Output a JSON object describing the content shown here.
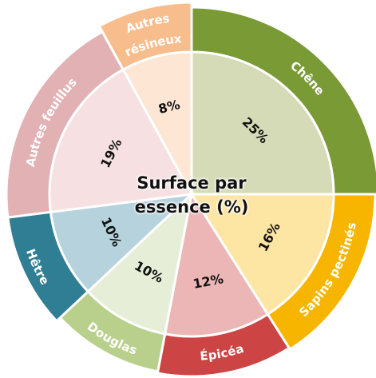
{
  "chart_data": {
    "type": "pie",
    "title": "Surface par essence (%)",
    "categories": [
      "Chêne",
      "Sapins pectinés",
      "Épicéa",
      "Douglas",
      "Hêtre",
      "Autres feuillus",
      "Autres résineux"
    ],
    "values": [
      25,
      16,
      12,
      10,
      10,
      19,
      8
    ],
    "value_labels": [
      "25%",
      "16%",
      "12%",
      "10%",
      "10%",
      "19%",
      "8%"
    ],
    "colors": [
      "#7a9a36",
      "#f7b500",
      "#cc4444",
      "#b9d08d",
      "#2f7e93",
      "#e2b1b4",
      "#f7bd8c"
    ],
    "inner_colors": [
      "#d5dbb6",
      "#fde5a3",
      "#ecb6b7",
      "#e7eed7",
      "#b5d2dd",
      "#f6e0e2",
      "#fde7d4"
    ]
  }
}
